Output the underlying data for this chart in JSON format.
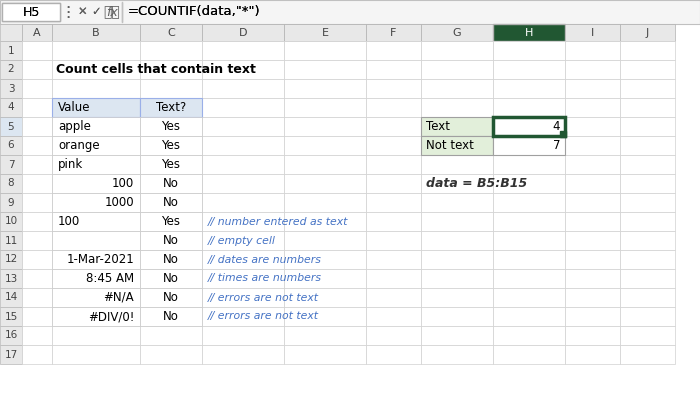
{
  "title": "Count cells that contain text",
  "formula_bar_cell": "H5",
  "formula_bar_formula": "=COUNTIF(data,\"*\")",
  "col_headers": [
    "A",
    "B",
    "C",
    "D",
    "E",
    "F",
    "G",
    "H",
    "I",
    "J"
  ],
  "main_table_headers": [
    "Value",
    "Text?"
  ],
  "main_table_data": [
    [
      "apple",
      "Yes"
    ],
    [
      "orange",
      "Yes"
    ],
    [
      "pink",
      "Yes"
    ],
    [
      "100",
      "No"
    ],
    [
      "1000",
      "No"
    ],
    [
      "100",
      "Yes"
    ],
    [
      "",
      "No"
    ],
    [
      "1-Mar-2021",
      "No"
    ],
    [
      "8:45 AM",
      "No"
    ],
    [
      "#N/A",
      "No"
    ],
    [
      "#DIV/0!",
      "No"
    ]
  ],
  "main_table_right_align": [
    false,
    false,
    false,
    true,
    true,
    false,
    false,
    true,
    true,
    true,
    true
  ],
  "comments": [
    "",
    "",
    "",
    "",
    "",
    "// number entered as text",
    "// empty cell",
    "// dates are numbers",
    "// times are numbers",
    "// errors are not text",
    "// errors are not text"
  ],
  "side_table": [
    [
      "Text",
      "4"
    ],
    [
      "Not text",
      "7"
    ]
  ],
  "annotation": "data = B5:B15",
  "bg_color": "#ffffff",
  "header_bar_color": "#e8e8e8",
  "selected_col_header_color": "#215732",
  "selected_col_header_text_color": "#ffffff",
  "table_header_fill": "#dce6f1",
  "side_label_fill": "#e2efda",
  "side_value_fill": "#ffffff",
  "selected_cell_border": "#215732",
  "grid_color": "#d0d0d0",
  "comment_color": "#4472c4",
  "num_rows": 17
}
